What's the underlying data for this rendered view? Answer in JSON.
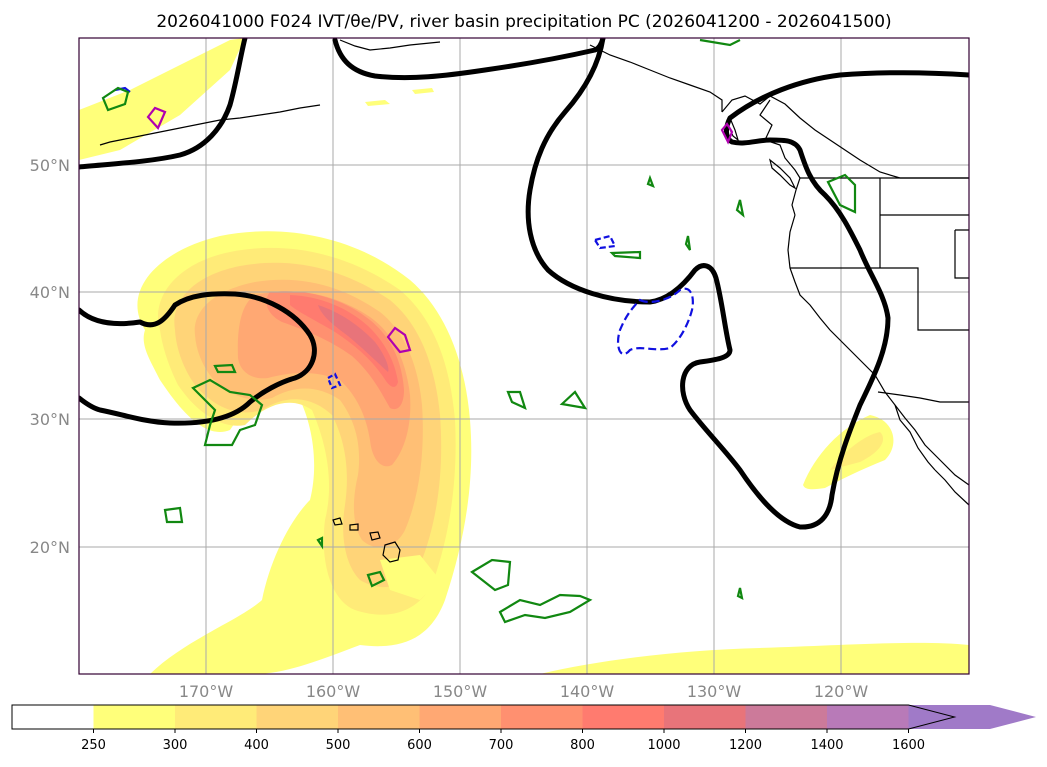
{
  "title": "2026041000 F024 IVT/θe/PV, river basin precipitation PC (2026041200 - 2026041500)",
  "map": {
    "lat_labels": [
      "50°N",
      "40°N",
      "30°N",
      "20°N"
    ],
    "lon_labels": [
      "170°W",
      "160°W",
      "150°W",
      "140°W",
      "130°W",
      "120°W"
    ],
    "lon_range": [
      -180,
      -110
    ],
    "lat_range": [
      10,
      60
    ],
    "grid": true,
    "colors": {
      "theta_e_contour": "#000000",
      "pv_positive": "#b000b0",
      "pv_negative": "#1010e0",
      "precip_pc": "#118811",
      "coastline": "#000000"
    }
  },
  "chart_data": {
    "type": "heatmap",
    "variable": "IVT",
    "colorbar": {
      "levels": [
        250,
        300,
        400,
        500,
        600,
        700,
        800,
        1000,
        1200,
        1400,
        1600
      ],
      "tick_labels": [
        "250",
        "300",
        "400",
        "500",
        "600",
        "700",
        "800",
        "1000",
        "1200",
        "1400",
        "1600"
      ],
      "colors": [
        "#ffff7a",
        "#ffeb78",
        "#ffd478",
        "#ffbf75",
        "#ffa873",
        "#ff9070",
        "#ff7b6f",
        "#e8747a",
        "#cc7a9a",
        "#b87ab8",
        "#a07ac8"
      ],
      "below_color": "#ffffff",
      "extend": "max"
    }
  }
}
